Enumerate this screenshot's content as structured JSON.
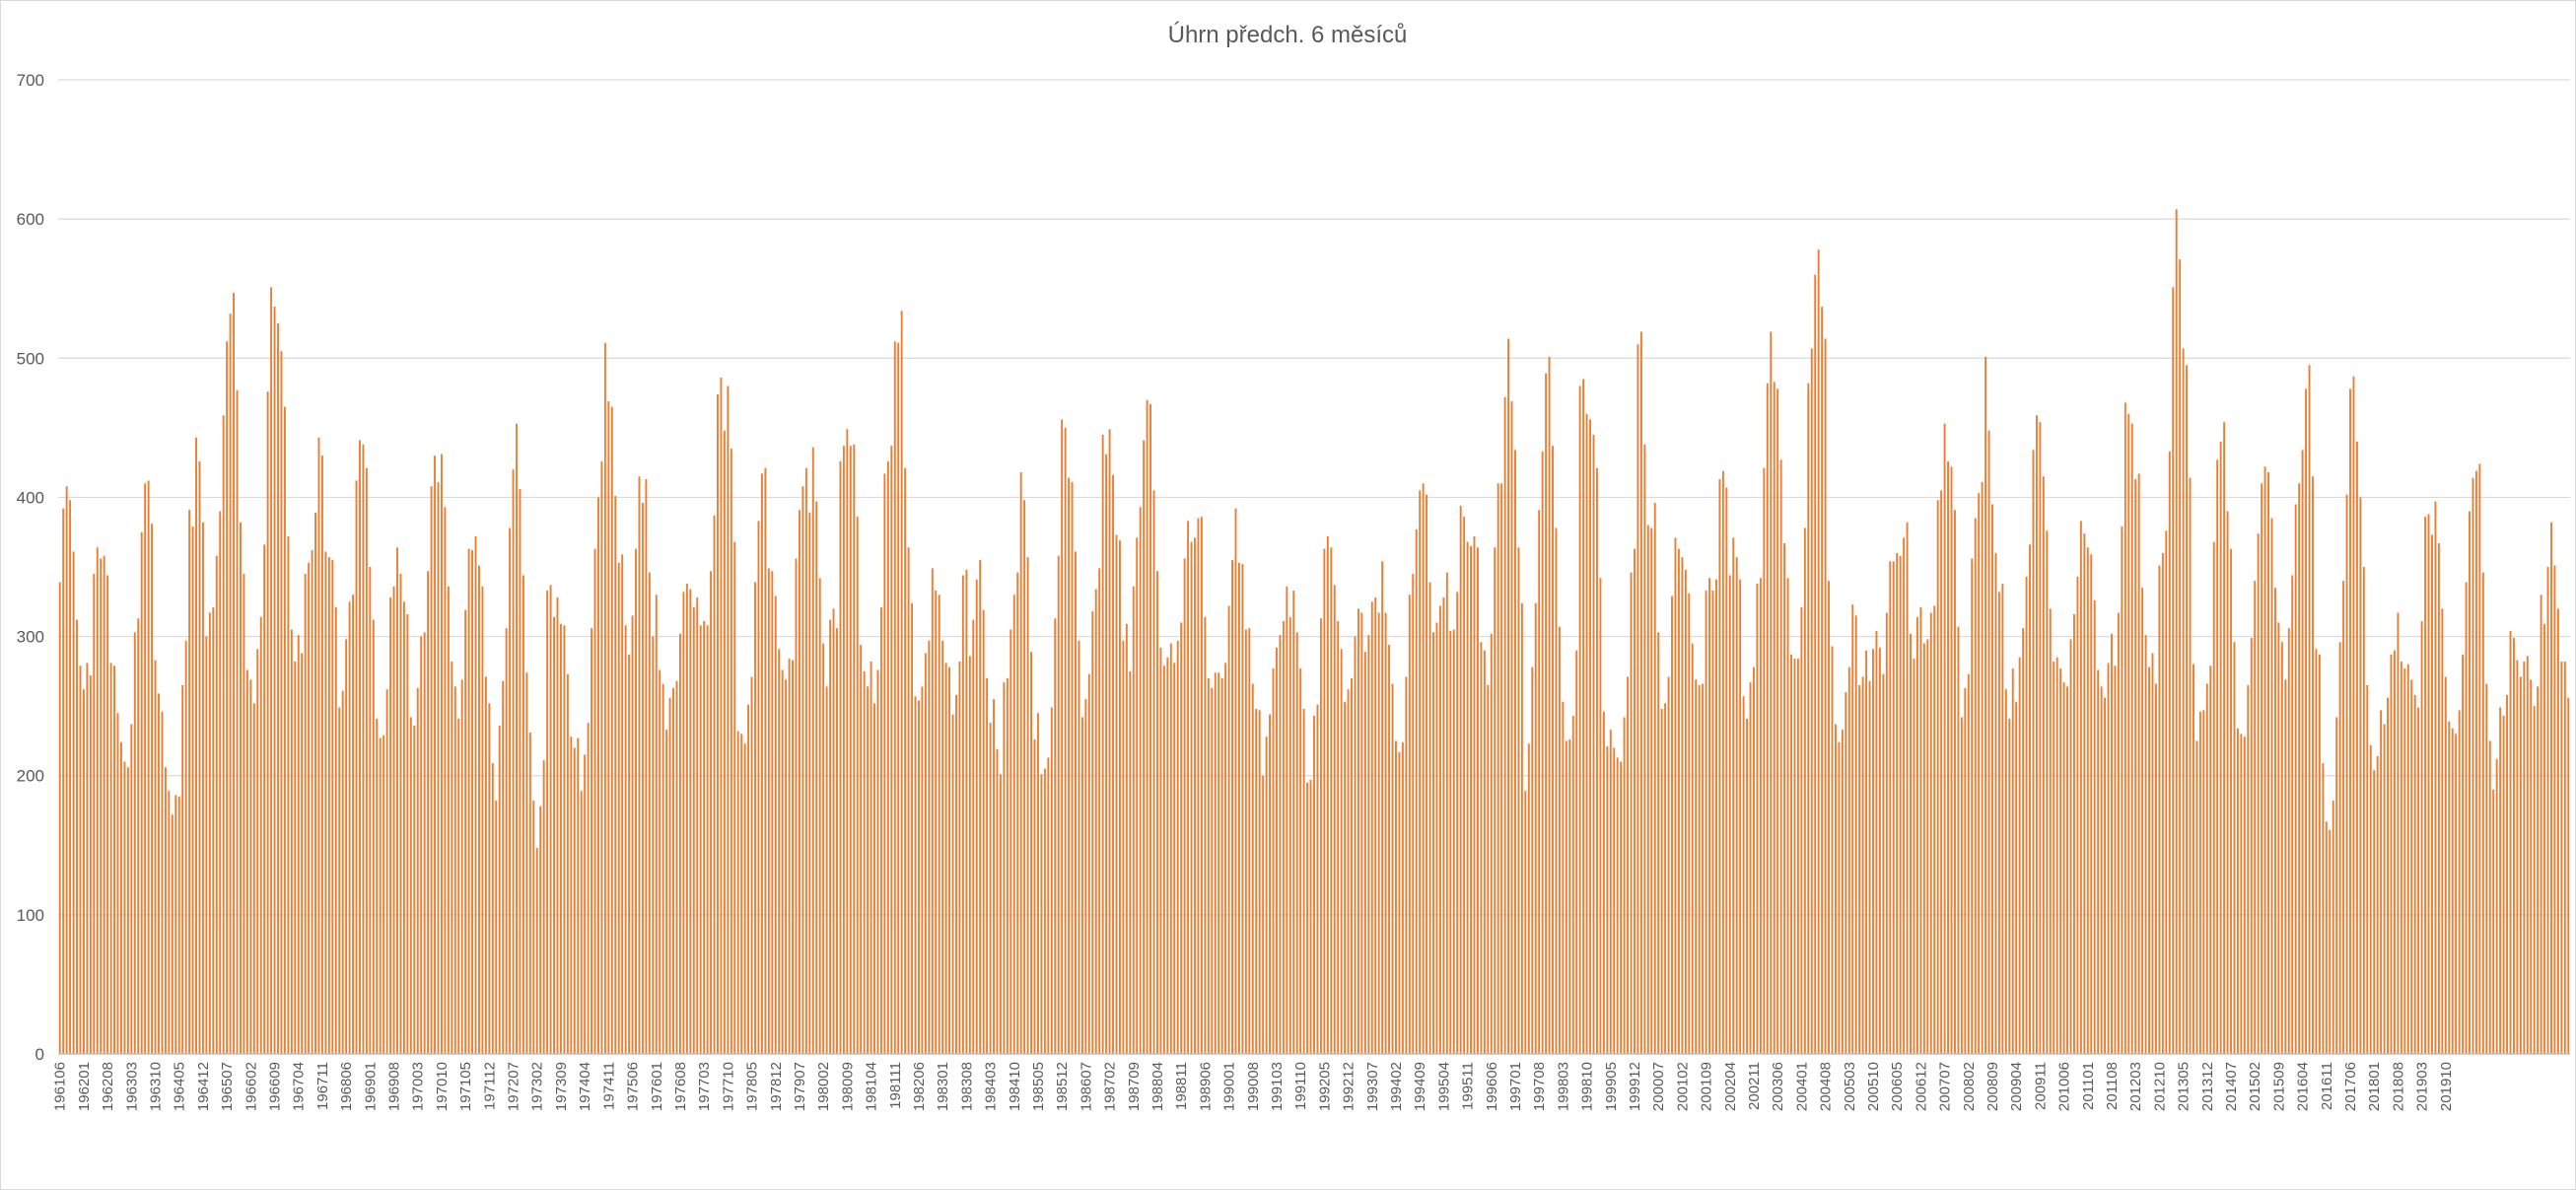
{
  "chart_data": {
    "type": "bar",
    "title": "Úhrn předch. 6 měsíců",
    "xlabel": "",
    "ylabel": "",
    "ylim": [
      0,
      700
    ],
    "y_ticks": [
      0,
      100,
      200,
      300,
      400,
      500,
      600,
      700
    ],
    "grid": true,
    "legend": "none",
    "start_period": "196106",
    "bar_color": "#ED7D31",
    "category_labels": [
      "196106",
      "196201",
      "196208",
      "196303",
      "196310",
      "196405",
      "196412",
      "196507",
      "196602",
      "196609",
      "196704",
      "196711",
      "196806",
      "196901",
      "196908",
      "197003",
      "197010",
      "197105",
      "197112",
      "197207",
      "197302",
      "197309",
      "197404",
      "197411",
      "197506",
      "197601",
      "197608",
      "197703",
      "197710",
      "197805",
      "197812",
      "197907",
      "198002",
      "198009",
      "198104",
      "198111",
      "198206",
      "198301",
      "198308",
      "198403",
      "198410",
      "198505",
      "198512",
      "198607",
      "198702",
      "198709",
      "198804",
      "198811",
      "198906",
      "199001",
      "199008",
      "199103",
      "199110",
      "199205",
      "199212",
      "199307",
      "199402",
      "199409",
      "199504",
      "199511",
      "199606",
      "199701",
      "199708",
      "199803",
      "199810",
      "199905",
      "199912",
      "200007",
      "200102",
      "200109",
      "200204",
      "200211",
      "200306",
      "200401",
      "200408",
      "200503",
      "200510",
      "200605",
      "200612",
      "200707",
      "200802",
      "200809",
      "200904",
      "200911",
      "201006",
      "201101",
      "201108",
      "201203",
      "201210",
      "201305",
      "201312",
      "201407",
      "201502",
      "201509",
      "201604",
      "201611",
      "201706",
      "201801",
      "201808",
      "201903",
      "201910"
    ],
    "values": [
      339,
      392,
      408,
      398,
      361,
      312,
      279,
      262,
      281,
      272,
      345,
      364,
      356,
      358,
      344,
      281,
      279,
      245,
      224,
      210,
      206,
      237,
      303,
      313,
      375,
      410,
      412,
      381,
      283,
      259,
      246,
      206,
      189,
      172,
      186,
      185,
      265,
      297,
      391,
      379,
      443,
      426,
      382,
      300,
      317,
      321,
      358,
      390,
      459,
      512,
      532,
      547,
      477,
      382,
      345,
      276,
      269,
      252,
      291,
      314,
      366,
      476,
      551,
      537,
      525,
      505,
      465,
      372,
      305,
      282,
      301,
      288,
      345,
      353,
      362,
      389,
      443,
      430,
      361,
      357,
      355,
      321,
      249,
      261,
      298,
      325,
      330,
      412,
      441,
      438,
      421,
      350,
      312,
      241,
      227,
      229,
      262,
      328,
      336,
      364,
      345,
      325,
      316,
      242,
      236,
      263,
      300,
      303,
      347,
      408,
      430,
      411,
      431,
      393,
      336,
      282,
      264,
      241,
      269,
      319,
      363,
      362,
      372,
      351,
      336,
      271,
      252,
      209,
      182,
      236,
      268,
      306,
      378,
      420,
      453,
      406,
      344,
      274,
      231,
      182,
      148,
      178,
      211,
      333,
      337,
      314,
      328,
      309,
      308,
      273,
      228,
      220,
      227,
      189,
      215,
      238,
      306,
      363,
      400,
      426,
      511,
      469,
      465,
      401,
      353,
      359,
      308,
      287,
      315,
      363,
      415,
      396,
      413,
      346,
      300,
      330,
      276,
      266,
      233,
      256,
      263,
      268,
      302,
      332,
      338,
      334,
      321,
      328,
      308,
      311,
      308,
      347,
      387,
      474,
      486,
      448,
      480,
      435,
      368,
      232,
      230,
      223,
      251,
      271,
      339,
      383,
      417,
      421,
      349,
      347,
      329,
      291,
      276,
      269,
      284,
      283,
      356,
      391,
      408,
      421,
      389,
      436,
      397,
      342,
      295,
      264,
      312,
      320,
      306,
      426,
      437,
      449,
      437,
      438,
      386,
      294,
      275,
      264,
      282,
      252,
      276,
      321,
      417,
      426,
      437,
      512,
      511,
      534,
      421,
      364,
      324,
      257,
      254,
      264,
      288,
      297,
      349,
      333,
      330,
      297,
      281,
      278,
      244,
      258,
      282,
      344,
      348,
      286,
      312,
      341,
      355,
      319,
      270,
      238,
      255,
      219,
      201,
      267,
      270,
      305,
      330,
      346,
      418,
      398,
      357,
      289,
      226,
      245,
      201,
      205,
      213,
      249,
      313,
      358,
      456,
      450,
      414,
      411,
      361,
      297,
      242,
      255,
      273,
      318,
      334,
      349,
      445,
      431,
      449,
      416,
      373,
      369,
      297,
      309,
      275,
      336,
      371,
      393,
      441,
      470,
      467,
      405,
      347,
      292,
      279,
      285,
      295,
      281,
      297,
      310,
      356,
      383,
      368,
      371,
      385,
      386,
      314,
      270,
      263,
      274,
      274,
      270,
      281,
      322,
      355,
      392,
      353,
      352,
      305,
      306,
      266,
      248,
      247,
      200,
      228,
      244,
      277,
      292,
      301,
      311,
      336,
      314,
      333,
      303,
      277,
      248,
      195,
      197,
      243,
      251,
      313,
      363,
      372,
      364,
      337,
      311,
      291,
      253,
      262,
      270,
      300,
      320,
      317,
      289,
      301,
      325,
      328,
      317,
      354,
      317,
      294,
      266,
      225,
      217,
      224,
      271,
      330,
      345,
      377,
      405,
      410,
      402,
      339,
      303,
      310,
      322,
      328,
      346,
      304,
      305,
      332,
      394,
      386,
      368,
      365,
      372,
      364,
      296,
      290,
      265,
      302,
      364,
      410,
      410,
      472,
      514,
      469,
      434,
      364,
      324,
      189,
      223,
      278,
      324,
      391,
      433,
      489,
      501,
      437,
      378,
      307,
      253,
      225,
      226,
      243,
      290,
      480,
      485,
      460,
      456,
      445,
      421,
      342,
      246,
      221,
      233,
      220,
      213,
      210,
      242,
      271,
      346,
      363,
      510,
      519,
      438,
      380,
      378,
      396,
      303,
      248,
      252,
      271,
      329,
      371,
      363,
      357,
      348,
      331,
      295,
      269,
      265,
      266,
      333,
      342,
      333,
      341,
      413,
      419,
      407,
      344,
      371,
      357,
      341,
      257,
      241,
      267,
      278,
      338,
      342,
      421,
      482,
      519,
      483,
      478,
      427,
      367,
      342,
      287,
      284,
      284,
      321,
      378,
      482,
      507,
      560,
      578,
      537,
      514,
      340,
      293,
      237,
      224,
      233,
      260,
      278,
      323,
      315,
      265,
      271,
      290,
      268,
      291,
      304,
      292,
      273,
      317,
      354,
      354,
      360,
      358,
      371,
      382,
      302,
      284,
      314,
      321,
      295,
      298,
      317,
      322,
      398,
      405,
      453,
      426,
      422,
      391,
      307,
      242,
      263,
      273,
      356,
      385,
      403,
      411,
      501,
      448,
      395,
      360,
      332,
      338,
      262,
      241,
      277,
      253,
      285,
      306,
      343,
      366,
      434,
      459,
      454,
      415,
      376,
      320,
      282,
      285,
      277,
      267,
      264,
      298,
      316,
      343,
      383,
      374,
      364,
      359,
      326,
      276,
      264,
      256,
      281,
      302,
      279,
      317,
      379,
      468,
      460,
      453,
      413,
      417,
      335,
      301,
      278,
      288,
      266,
      351,
      360,
      376,
      433,
      551,
      607,
      571,
      507,
      495,
      414,
      280,
      225,
      246,
      247,
      266,
      279,
      368,
      427,
      440,
      454,
      390,
      363,
      296,
      234,
      230,
      228,
      265,
      299,
      340,
      374,
      410,
      422,
      418,
      385,
      335,
      310,
      296,
      269,
      306,
      344,
      395,
      410,
      434,
      478,
      495,
      415,
      291,
      287,
      209,
      167,
      161,
      182,
      242,
      296,
      340,
      402,
      478,
      487,
      440,
      400,
      350,
      265,
      222,
      204,
      214,
      247,
      237,
      256,
      287,
      290,
      317,
      282,
      277,
      280,
      269,
      258,
      249,
      311,
      386,
      388,
      373,
      397,
      367,
      320,
      271,
      239,
      234,
      230,
      247,
      287,
      339,
      390,
      414,
      419,
      424,
      346,
      266,
      225,
      190,
      212,
      249,
      243,
      258,
      304,
      299,
      283,
      271,
      282,
      286,
      269,
      250,
      264,
      330,
      309,
      350,
      382,
      351,
      320,
      282,
      282,
      256
    ]
  }
}
